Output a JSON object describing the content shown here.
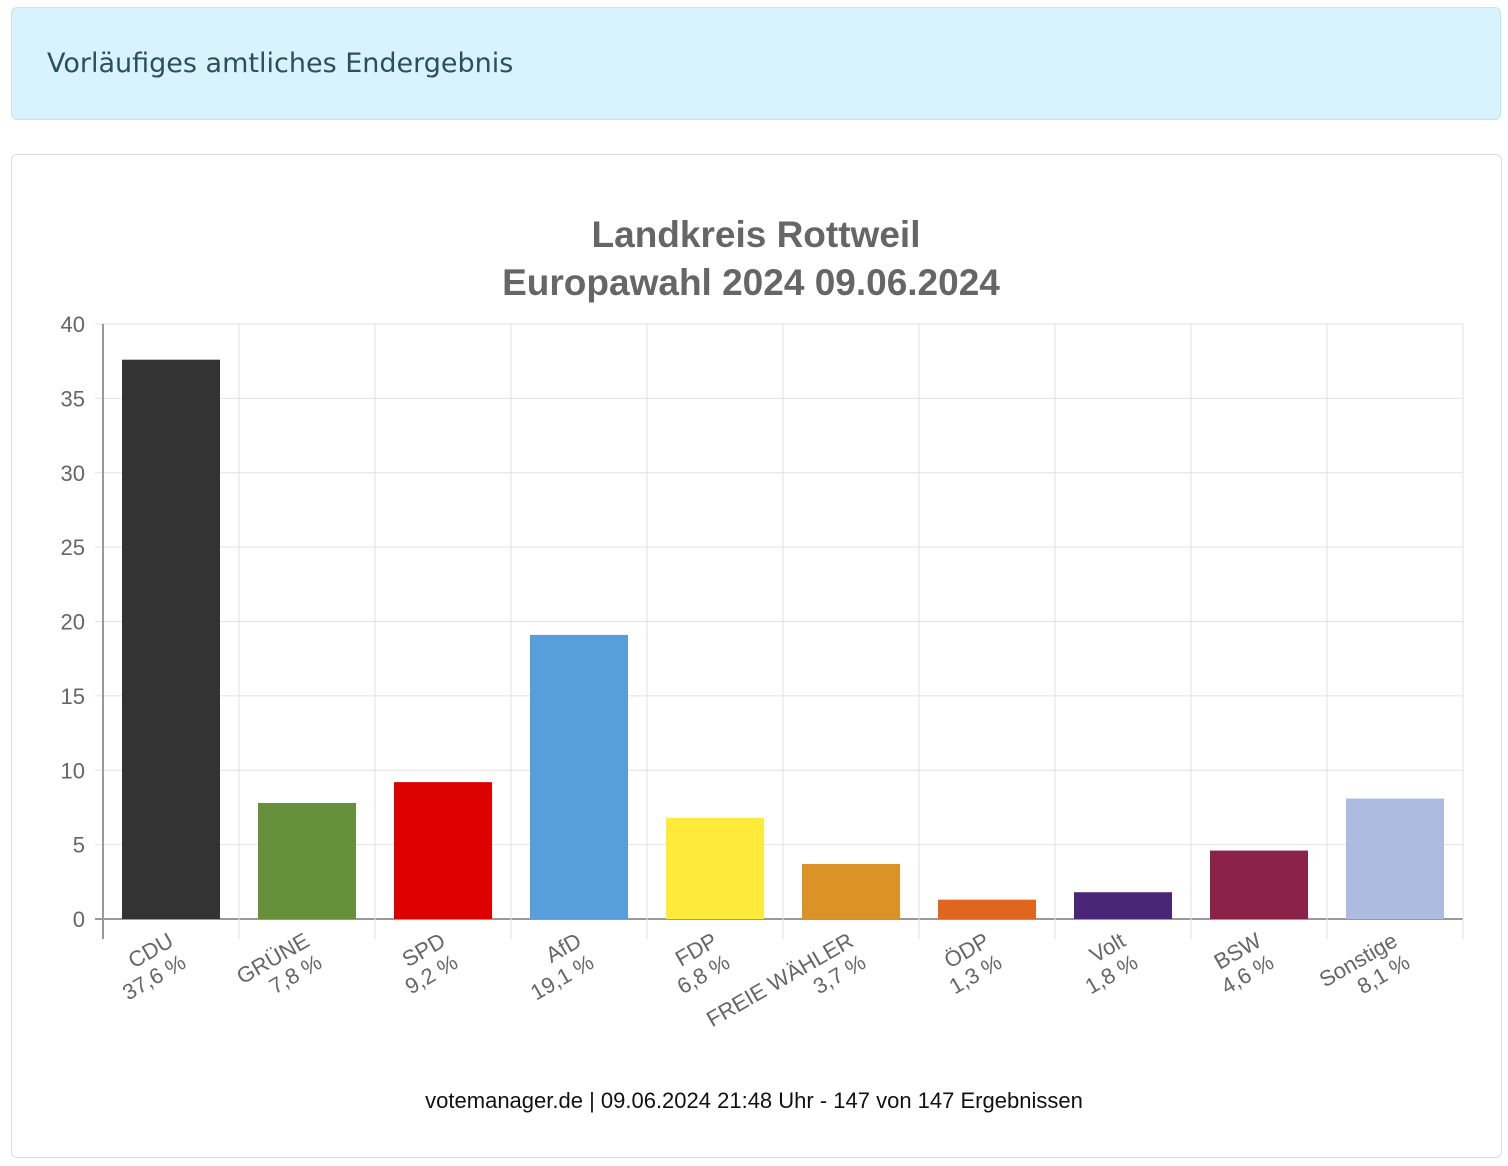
{
  "alert": {
    "text": "Vorläufiges amtliches Endergebnis"
  },
  "footer": {
    "text": "votemanager.de | 09.06.2024 21:48 Uhr - 147 von 147 Ergebnissen"
  },
  "chart_data": {
    "type": "bar",
    "title": [
      "Landkreis Rottweil",
      "Europawahl 2024 09.06.2024"
    ],
    "xlabel": "",
    "ylabel": "",
    "ylim": [
      0,
      40
    ],
    "yticks": [
      0,
      5,
      10,
      15,
      20,
      25,
      30,
      35,
      40
    ],
    "grid": true,
    "categories": [
      "CDU",
      "GRÜNE",
      "SPD",
      "AfD",
      "FDP",
      "FREIE WÄHLER",
      "ÖDP",
      "Volt",
      "BSW",
      "Sonstige"
    ],
    "value_labels": [
      "37,6 %",
      "7,8 %",
      "9,2 %",
      "19,1 %",
      "6,8 %",
      "3,7 %",
      "1,3 %",
      "1,8 %",
      "4,6 %",
      "8,1 %"
    ],
    "values": [
      37.6,
      7.8,
      9.2,
      19.1,
      6.8,
      3.7,
      1.3,
      1.8,
      4.6,
      8.1
    ],
    "colors": [
      "#333333",
      "#66913a",
      "#dd0000",
      "#589ddc",
      "#fdea3b",
      "#db9227",
      "#e0661f",
      "#4a2776",
      "#8b2249",
      "#aebbe0"
    ]
  }
}
